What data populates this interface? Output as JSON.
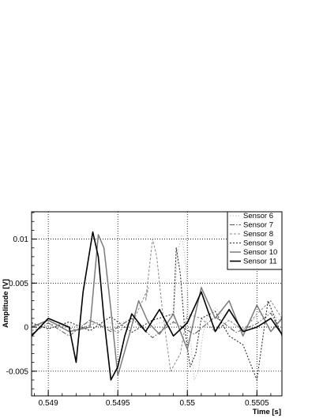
{
  "chart_data": {
    "type": "line",
    "title": "",
    "xlabel": "Time [s]",
    "ylabel": "Amplitude [V]",
    "xlim": [
      0.54888,
      0.55068
    ],
    "ylim": [
      -0.0078,
      0.0131
    ],
    "grid": "dotted",
    "legend_position": "top-right",
    "x_ticks": [
      {
        "value": 0.549,
        "label": "0.549"
      },
      {
        "value": 0.5495,
        "label": "0.5495"
      },
      {
        "value": 0.55,
        "label": "0.55"
      },
      {
        "value": 0.5505,
        "label": "0.5505"
      }
    ],
    "y_ticks": [
      {
        "value": -0.005,
        "label": "-0.005"
      },
      {
        "value": 0,
        "label": "0"
      },
      {
        "value": 0.005,
        "label": "0.005"
      },
      {
        "value": 0.01,
        "label": "0.01"
      }
    ],
    "series": [
      {
        "name": "Sensor 6",
        "color": "#c4c4c4",
        "dash": "1.5 2",
        "width": 1.0,
        "x": [
          0.54888,
          0.54905,
          0.5492,
          0.54935,
          0.5495,
          0.5496,
          0.5497,
          0.5498,
          0.5499,
          0.5499,
          0.54993,
          0.54996,
          0.54999,
          0.55002,
          0.55005,
          0.55008,
          0.55011,
          0.55014,
          0.5502,
          0.5503,
          0.5504,
          0.5505,
          0.5506,
          0.55068
        ],
        "y": [
          0.0002,
          0.0006,
          0.0001,
          0.0008,
          0.0003,
          0.001,
          -0.0002,
          0.0005,
          0.0004,
          0.0005,
          0.0085,
          0.0105,
          0.007,
          -0.001,
          -0.006,
          -0.005,
          -0.001,
          0.001,
          0.0022,
          0.0007,
          -0.0002,
          0.0012,
          0.0018,
          0.0005
        ]
      },
      {
        "name": "Sensor 7",
        "color": "#555555",
        "dash": "6 2 1.5 2",
        "width": 1.0,
        "x": [
          0.54888,
          0.549,
          0.54915,
          0.5493,
          0.54945,
          0.5496,
          0.54975,
          0.5499,
          0.55005,
          0.5502,
          0.55035,
          0.5505,
          0.5506,
          0.55068
        ],
        "y": [
          -0.0008,
          0.0005,
          -0.001,
          0.0008,
          -0.0005,
          0.001,
          -0.0012,
          0.0006,
          -0.0008,
          0.0012,
          -0.0006,
          0.0004,
          0.0016,
          -0.0008
        ]
      },
      {
        "name": "Sensor 8",
        "color": "#8a8a8a",
        "dash": "3 2",
        "width": 1.0,
        "x": [
          0.54888,
          0.54905,
          0.5492,
          0.54935,
          0.5495,
          0.54962,
          0.54972,
          0.5497,
          0.54975,
          0.54978,
          0.54982,
          0.54988,
          0.54995,
          0.55,
          0.5501,
          0.5502,
          0.5503,
          0.5504,
          0.5505,
          0.5506,
          0.55068
        ],
        "y": [
          -0.0004,
          0.0004,
          -0.0003,
          0.0005,
          -0.0006,
          0.001,
          0.0045,
          0.003,
          0.01,
          0.008,
          0.002,
          -0.005,
          -0.003,
          0.0015,
          0.001,
          -0.0005,
          0.0008,
          -0.0004,
          0.0015,
          0.003,
          0.001
        ]
      },
      {
        "name": "Sensor 9",
        "color": "#2a2a2a",
        "dash": "2 2",
        "width": 1.1,
        "x": [
          0.54888,
          0.549,
          0.54915,
          0.5493,
          0.54945,
          0.5496,
          0.54975,
          0.5499,
          0.54992,
          0.54995,
          0.54998,
          0.55002,
          0.55006,
          0.5501,
          0.5502,
          0.5503,
          0.5504,
          0.5505,
          0.55058,
          0.55068
        ],
        "y": [
          0.0005,
          -0.0002,
          0.0006,
          -0.0004,
          0.0012,
          -0.0006,
          0.0008,
          0.0015,
          0.009,
          0.006,
          0.0,
          -0.0045,
          -0.003,
          0.001,
          0.0018,
          -0.001,
          -0.002,
          -0.006,
          0.003,
          -0.001
        ]
      },
      {
        "name": "Sensor 10",
        "color": "#7a7a7a",
        "dash": "",
        "width": 1.5,
        "x": [
          0.54888,
          0.549,
          0.54915,
          0.5493,
          0.54936,
          0.5494,
          0.54945,
          0.5495,
          0.54958,
          0.54965,
          0.54972,
          0.5498,
          0.5499,
          0.55,
          0.5501,
          0.5502,
          0.5503,
          0.5504,
          0.5505,
          0.5506,
          0.55068
        ],
        "y": [
          0.0,
          0.0008,
          -0.0005,
          0.0,
          0.0105,
          0.009,
          0.002,
          -0.0055,
          -0.001,
          0.003,
          0.0005,
          -0.0008,
          0.0015,
          -0.0025,
          0.0045,
          0.001,
          0.003,
          -0.001,
          0.0025,
          -0.0005,
          0.001
        ]
      },
      {
        "name": "Sensor 11",
        "color": "#000000",
        "dash": "",
        "width": 1.6,
        "x": [
          0.54888,
          0.549,
          0.54915,
          0.5492,
          0.54925,
          0.54932,
          0.54936,
          0.5494,
          0.54945,
          0.5495,
          0.54955,
          0.5496,
          0.5497,
          0.5498,
          0.5499,
          0.55,
          0.5501,
          0.5502,
          0.5503,
          0.5504,
          0.5505,
          0.5506,
          0.55068
        ],
        "y": [
          -0.001,
          0.001,
          0.0,
          -0.004,
          0.004,
          0.0108,
          0.008,
          0.001,
          -0.006,
          -0.0045,
          -0.001,
          0.0015,
          -0.0005,
          0.002,
          -0.001,
          0.0005,
          0.004,
          -0.0005,
          0.002,
          -0.0005,
          0.0,
          0.001,
          -0.0008
        ]
      }
    ]
  }
}
